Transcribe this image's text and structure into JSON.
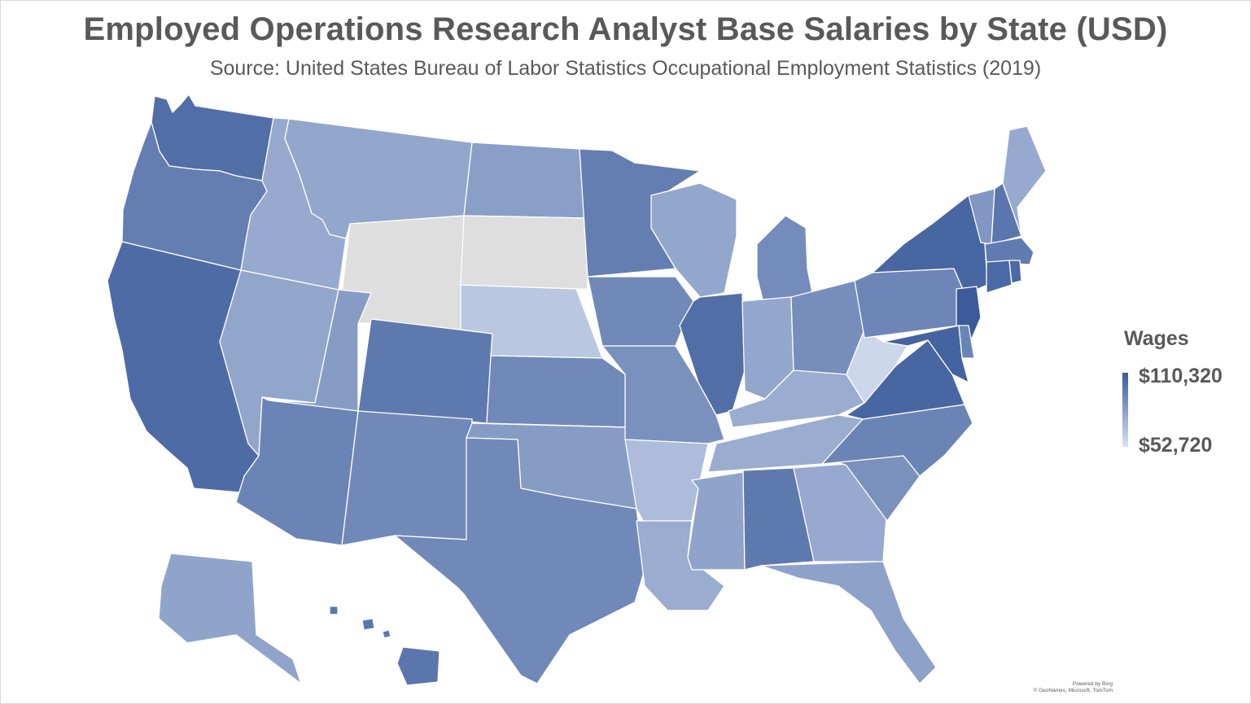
{
  "title": "Employed Operations Research Analyst Base Salaries by State (USD)",
  "subtitle": "Source: United States Bureau of Labor Statistics Occupational Employment Statistics (2019)",
  "legend": {
    "title": "Wages",
    "max_label": "$110,320",
    "min_label": "$52,720",
    "max_value": 110320,
    "min_value": 52720,
    "color_max": "#3b5b9b",
    "color_min": "#d9e2f3",
    "color_no_data": "#dedede"
  },
  "credit": {
    "line1": "Powered by Bing",
    "line2": "© GeoNames, Microsoft, TomTom"
  },
  "map_data": {
    "type": "choropleth",
    "region": "United States",
    "measure": "Wages",
    "no_data_states": [
      "WY",
      "SD"
    ],
    "state_shades": [
      {
        "state": "WA",
        "level": 0.86
      },
      {
        "state": "OR",
        "level": 0.74
      },
      {
        "state": "CA",
        "level": 0.88
      },
      {
        "state": "ID",
        "level": 0.42
      },
      {
        "state": "MT",
        "level": 0.44
      },
      {
        "state": "NV",
        "level": 0.45
      },
      {
        "state": "UT",
        "level": 0.52
      },
      {
        "state": "AZ",
        "level": 0.7
      },
      {
        "state": "CO",
        "level": 0.78
      },
      {
        "state": "NM",
        "level": 0.66
      },
      {
        "state": "ND",
        "level": 0.5
      },
      {
        "state": "NE",
        "level": 0.2
      },
      {
        "state": "KS",
        "level": 0.66
      },
      {
        "state": "OK",
        "level": 0.52
      },
      {
        "state": "TX",
        "level": 0.66
      },
      {
        "state": "MN",
        "level": 0.74
      },
      {
        "state": "IA",
        "level": 0.66
      },
      {
        "state": "MO",
        "level": 0.6
      },
      {
        "state": "AR",
        "level": 0.28
      },
      {
        "state": "LA",
        "level": 0.4
      },
      {
        "state": "WI",
        "level": 0.44
      },
      {
        "state": "IL",
        "level": 0.86
      },
      {
        "state": "MI",
        "level": 0.64
      },
      {
        "state": "IN",
        "level": 0.44
      },
      {
        "state": "OH",
        "level": 0.62
      },
      {
        "state": "KY",
        "level": 0.4
      },
      {
        "state": "TN",
        "level": 0.4
      },
      {
        "state": "MS",
        "level": 0.46
      },
      {
        "state": "AL",
        "level": 0.78
      },
      {
        "state": "GA",
        "level": 0.42
      },
      {
        "state": "FL",
        "level": 0.48
      },
      {
        "state": "SC",
        "level": 0.6
      },
      {
        "state": "NC",
        "level": 0.7
      },
      {
        "state": "VA",
        "level": 0.92
      },
      {
        "state": "WV",
        "level": 0.08
      },
      {
        "state": "PA",
        "level": 0.68
      },
      {
        "state": "NY",
        "level": 0.92
      },
      {
        "state": "VT",
        "level": 0.56
      },
      {
        "state": "NH",
        "level": 0.8
      },
      {
        "state": "ME",
        "level": 0.42
      },
      {
        "state": "MA",
        "level": 0.76
      },
      {
        "state": "CT",
        "level": 0.9
      },
      {
        "state": "RI",
        "level": 0.9
      },
      {
        "state": "NJ",
        "level": 1.0
      },
      {
        "state": "DE",
        "level": 0.7
      },
      {
        "state": "MD",
        "level": 0.94
      },
      {
        "state": "AK",
        "level": 0.46
      },
      {
        "state": "HI",
        "level": 0.8
      }
    ]
  }
}
